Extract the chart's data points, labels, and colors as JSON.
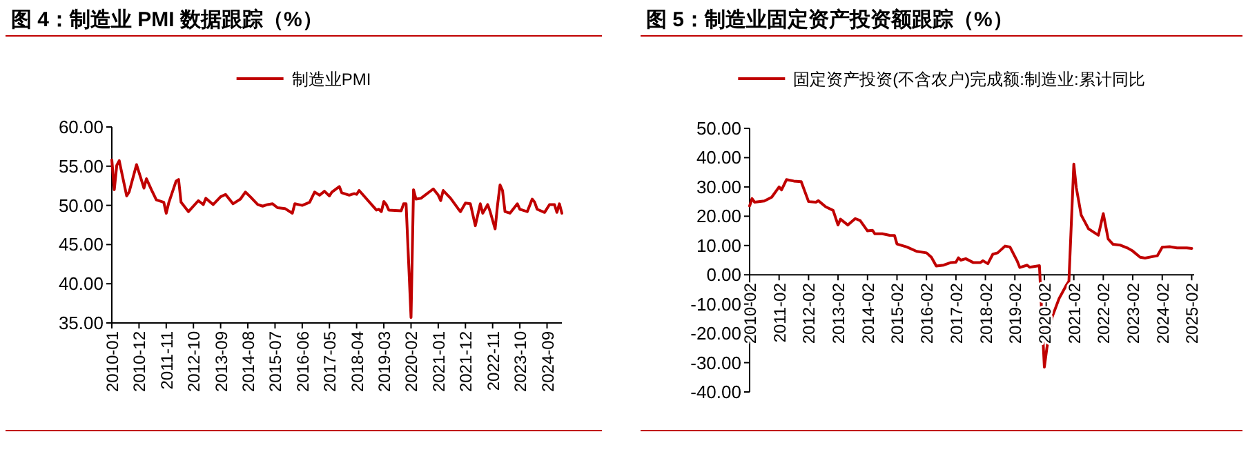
{
  "chart_data": [
    {
      "type": "line",
      "title": "图 4：制造业 PMI 数据跟踪（%）",
      "legend": "top",
      "grid": false,
      "marker": "none",
      "line_style": "solid",
      "xlim": [
        "2010-01",
        "2025-03"
      ],
      "ylim": [
        35,
        60
      ],
      "yticks": [
        {
          "value": 35,
          "label": "35.00"
        },
        {
          "value": 40,
          "label": "40.00"
        },
        {
          "value": 45,
          "label": "45.00"
        },
        {
          "value": 50,
          "label": "50.00"
        },
        {
          "value": 55,
          "label": "55.00"
        },
        {
          "value": 60,
          "label": "60.00"
        }
      ],
      "xticks": [
        "2010-01",
        "2010-12",
        "2011-11",
        "2012-10",
        "2013-09",
        "2014-08",
        "2015-07",
        "2016-06",
        "2017-05",
        "2018-04",
        "2019-03",
        "2020-02",
        "2021-01",
        "2021-12",
        "2022-11",
        "2023-10",
        "2024-09"
      ],
      "series": [
        {
          "name": "制造业PMI",
          "color": "#c00000",
          "x": [
            "2010-01",
            "2010-02",
            "2010-03",
            "2010-04",
            "2010-07",
            "2010-08",
            "2010-11",
            "2011-02",
            "2011-03",
            "2011-05",
            "2011-07",
            "2011-10",
            "2011-11",
            "2011-12",
            "2012-03",
            "2012-04",
            "2012-05",
            "2012-08",
            "2012-12",
            "2013-02",
            "2013-03",
            "2013-06",
            "2013-09",
            "2013-11",
            "2014-02",
            "2014-05",
            "2014-07",
            "2014-09",
            "2014-12",
            "2015-02",
            "2015-04",
            "2015-06",
            "2015-08",
            "2015-11",
            "2016-02",
            "2016-03",
            "2016-06",
            "2016-09",
            "2016-11",
            "2017-01",
            "2017-03",
            "2017-05",
            "2017-06",
            "2017-09",
            "2017-10",
            "2018-01",
            "2018-03",
            "2018-04",
            "2018-05",
            "2018-12",
            "2019-01",
            "2019-02",
            "2019-03",
            "2019-04",
            "2019-05",
            "2019-10",
            "2019-11",
            "2019-12",
            "2020-02",
            "2020-03",
            "2020-04",
            "2020-06",
            "2020-11",
            "2021-01",
            "2021-02",
            "2021-03",
            "2021-06",
            "2021-09",
            "2021-10",
            "2021-12",
            "2022-02",
            "2022-04",
            "2022-06",
            "2022-07",
            "2022-09",
            "2022-10",
            "2022-12",
            "2023-01",
            "2023-02",
            "2023-03",
            "2023-04",
            "2023-06",
            "2023-09",
            "2023-10",
            "2023-11",
            "2024-01",
            "2024-03",
            "2024-04",
            "2024-05",
            "2024-08",
            "2024-10",
            "2024-12",
            "2025-01",
            "2025-02",
            "2025-03"
          ],
          "values": [
            55.8,
            52.0,
            55.1,
            55.7,
            51.2,
            51.7,
            55.2,
            52.2,
            53.4,
            52.0,
            50.7,
            50.4,
            49.0,
            50.3,
            53.1,
            53.3,
            50.4,
            49.2,
            50.6,
            50.1,
            50.9,
            50.1,
            51.1,
            51.4,
            50.2,
            50.8,
            51.7,
            51.1,
            50.1,
            49.9,
            50.1,
            50.2,
            49.7,
            49.6,
            49.0,
            50.2,
            50.0,
            50.4,
            51.7,
            51.3,
            51.8,
            51.2,
            51.7,
            52.4,
            51.6,
            51.3,
            51.5,
            51.4,
            51.9,
            49.4,
            49.5,
            49.2,
            50.5,
            50.1,
            49.4,
            49.3,
            50.2,
            50.2,
            35.7,
            52.0,
            50.8,
            50.9,
            52.1,
            51.3,
            50.6,
            51.9,
            50.9,
            49.6,
            49.2,
            50.3,
            50.2,
            47.4,
            50.2,
            49.0,
            50.1,
            49.2,
            47.0,
            50.1,
            52.6,
            51.9,
            49.2,
            49.0,
            50.2,
            49.5,
            49.4,
            49.2,
            50.8,
            50.4,
            49.5,
            49.1,
            50.1,
            50.1,
            49.1,
            50.2,
            49.0
          ]
        }
      ]
    },
    {
      "type": "line",
      "title": "图 5：制造业固定资产投资额跟踪（%）",
      "legend": "top",
      "grid": false,
      "marker": "none",
      "line_style": "solid",
      "xlim": [
        "2010-02",
        "2025-03"
      ],
      "ylim": [
        -40,
        50
      ],
      "yticks": [
        {
          "value": -40,
          "label": "-40.00"
        },
        {
          "value": -30,
          "label": "-30.00"
        },
        {
          "value": -20,
          "label": "-20.00"
        },
        {
          "value": -10,
          "label": "-10.00"
        },
        {
          "value": 0,
          "label": "0.00"
        },
        {
          "value": 10,
          "label": "10.00"
        },
        {
          "value": 20,
          "label": "20.00"
        },
        {
          "value": 30,
          "label": "30.00"
        },
        {
          "value": 40,
          "label": "40.00"
        },
        {
          "value": 50,
          "label": "50.00"
        }
      ],
      "xticks": [
        "2010-02",
        "2011-02",
        "2012-02",
        "2013-02",
        "2014-02",
        "2015-02",
        "2016-02",
        "2017-02",
        "2018-02",
        "2019-02",
        "2020-02",
        "2021-02",
        "2022-02",
        "2023-02",
        "2024-02",
        "2025-02"
      ],
      "series": [
        {
          "name": "固定资产投资(不含农户)完成额:制造业:累计同比",
          "color": "#c00000",
          "x": [
            "2010-02",
            "2010-03",
            "2010-04",
            "2010-08",
            "2010-11",
            "2011-02",
            "2011-03",
            "2011-05",
            "2011-08",
            "2011-11",
            "2012-02",
            "2012-05",
            "2012-06",
            "2012-09",
            "2012-12",
            "2013-02",
            "2013-03",
            "2013-06",
            "2013-09",
            "2013-11",
            "2014-02",
            "2014-04",
            "2014-05",
            "2014-08",
            "2014-11",
            "2015-01",
            "2015-02",
            "2015-06",
            "2015-10",
            "2016-02",
            "2016-04",
            "2016-06",
            "2016-09",
            "2016-12",
            "2017-02",
            "2017-03",
            "2017-04",
            "2017-06",
            "2017-09",
            "2017-12",
            "2018-01",
            "2018-03",
            "2018-05",
            "2018-07",
            "2018-10",
            "2018-12",
            "2019-03",
            "2019-04",
            "2019-07",
            "2019-08",
            "2019-12",
            "2020-02",
            "2020-03",
            "2020-05",
            "2020-08",
            "2020-11",
            "2020-12",
            "2021-02",
            "2021-03",
            "2021-05",
            "2021-08",
            "2021-12",
            "2022-02",
            "2022-04",
            "2022-06",
            "2022-09",
            "2022-12",
            "2023-02",
            "2023-05",
            "2023-07",
            "2023-10",
            "2023-12",
            "2024-02",
            "2024-05",
            "2024-08",
            "2024-12",
            "2025-02"
          ],
          "values": [
            23.5,
            26.0,
            24.8,
            25.2,
            26.5,
            30.0,
            29.0,
            32.5,
            32.0,
            31.8,
            25.0,
            24.8,
            25.3,
            23.2,
            22.0,
            17.0,
            19.0,
            17.0,
            19.2,
            18.5,
            15.0,
            15.2,
            14.0,
            14.0,
            13.5,
            13.4,
            10.5,
            9.5,
            8.0,
            7.5,
            6.0,
            3.0,
            3.3,
            4.2,
            4.3,
            5.8,
            5.0,
            5.5,
            4.2,
            4.2,
            4.8,
            3.8,
            7.0,
            7.5,
            9.8,
            9.5,
            4.6,
            2.5,
            3.3,
            2.6,
            3.1,
            -31.5,
            -25.2,
            -14.8,
            -8.1,
            -3.5,
            -2.2,
            37.8,
            29.8,
            20.4,
            15.7,
            13.5,
            20.9,
            12.2,
            10.4,
            10.1,
            9.1,
            8.1,
            6.0,
            5.7,
            6.2,
            6.5,
            9.4,
            9.6,
            9.2,
            9.2,
            9.0
          ]
        }
      ]
    }
  ]
}
